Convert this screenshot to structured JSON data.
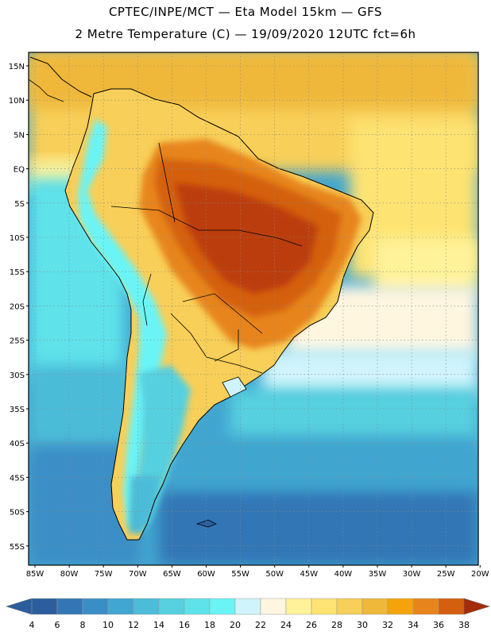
{
  "header": {
    "line1": "CPTEC/INPE/MCT —  Eta Model 15km — GFS",
    "line2": "2 Metre Temperature (C) — 19/09/2020 12UTC fct=6h"
  },
  "map": {
    "lat_labels": [
      "15N",
      "10N",
      "5N",
      "EQ",
      "5S",
      "10S",
      "15S",
      "20S",
      "25S",
      "30S",
      "35S",
      "40S",
      "45S",
      "50S",
      "55S"
    ],
    "lon_labels": [
      "85W",
      "80W",
      "75W",
      "70W",
      "65W",
      "60W",
      "55W",
      "50W",
      "45W",
      "40W",
      "35W",
      "30W",
      "25W",
      "20W"
    ]
  },
  "legend": {
    "ticks": [
      "4",
      "6",
      "8",
      "10",
      "12",
      "14",
      "16",
      "18",
      "20",
      "22",
      "24",
      "26",
      "28",
      "30",
      "32",
      "34",
      "36",
      "38"
    ],
    "colors": [
      "#2c5e9e",
      "#3376b6",
      "#3a8ec6",
      "#41a6d0",
      "#4cbcd8",
      "#56d0df",
      "#5ee2ea",
      "#6bf4f6",
      "#cff4fb",
      "#fff6e0",
      "#fff299",
      "#fde372",
      "#f8cf58",
      "#efb83b",
      "#f4a40a",
      "#e7851c",
      "#d4600f",
      "#bb3e0a",
      "#a52c08"
    ],
    "arrow_left_color": "#2c5e9e",
    "arrow_right_color": "#a52c08"
  }
}
